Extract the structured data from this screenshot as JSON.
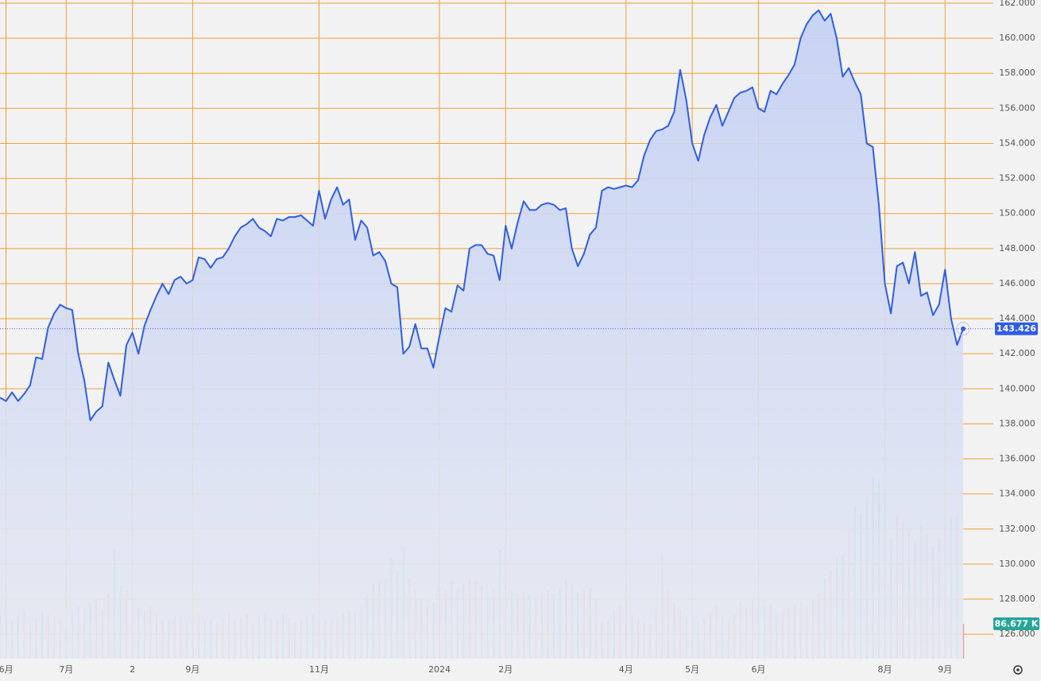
{
  "chart_data": {
    "type": "line",
    "series": [
      {
        "color": "#2f5de8",
        "values": [
          139.5,
          139.3,
          139.8,
          139.3,
          139.7,
          140.2,
          141.8,
          141.7,
          143.5,
          144.3,
          144.8,
          144.6,
          144.5,
          142.0,
          140.5,
          138.2,
          138.7,
          139.0,
          141.5,
          140.5,
          139.6,
          142.5,
          143.2,
          142.0,
          143.6,
          144.5,
          145.3,
          146.0,
          145.4,
          146.2,
          146.4,
          146.0,
          146.2,
          147.5,
          147.4,
          146.9,
          147.4,
          147.5,
          148.0,
          148.7,
          149.2,
          149.4,
          149.7,
          149.2,
          149.0,
          148.7,
          149.7,
          149.6,
          149.8,
          149.8,
          149.9,
          149.6,
          149.3,
          151.3,
          149.7,
          150.8,
          151.5,
          150.5,
          150.8,
          148.5,
          149.6,
          149.2,
          147.6,
          147.8,
          147.3,
          146.0,
          145.8,
          142.0,
          142.4,
          143.7,
          142.3,
          142.3,
          141.2,
          143.0,
          144.6,
          144.4,
          145.9,
          145.6,
          148.0,
          148.2,
          148.2,
          147.7,
          147.6,
          146.2,
          149.3,
          148.0,
          149.5,
          150.7,
          150.2,
          150.2,
          150.5,
          150.6,
          150.5,
          150.2,
          150.3,
          148.0,
          147.0,
          147.7,
          148.8,
          149.2,
          151.3,
          151.5,
          151.4,
          151.5,
          151.6,
          151.5,
          151.9,
          153.3,
          154.2,
          154.7,
          154.8,
          155.0,
          155.8,
          158.2,
          156.5,
          154.0,
          153.0,
          154.5,
          155.5,
          156.2,
          155.0,
          155.8,
          156.6,
          156.9,
          157.0,
          157.2,
          156.0,
          155.8,
          157.0,
          156.8,
          157.4,
          157.9,
          158.5,
          160.0,
          160.8,
          161.3,
          161.6,
          161.0,
          161.4,
          160.0,
          157.8,
          158.3,
          157.5,
          156.8,
          154.0,
          153.8,
          150.5,
          146.0,
          144.3,
          147.0,
          147.2,
          146.0,
          147.8,
          145.3,
          145.5,
          144.2,
          144.8,
          146.8,
          144.0,
          142.5,
          143.426
        ]
      }
    ],
    "volume": {
      "up_color": "#ef9a9a",
      "down_color": "#80c8bc",
      "ylim": [
        0,
        1625
      ],
      "last_label": "86.677 K",
      "values": [
        110,
        100,
        95,
        105,
        120,
        90,
        100,
        115,
        110,
        105,
        95,
        80,
        120,
        130,
        125,
        140,
        150,
        120,
        160,
        270,
        180,
        170,
        140,
        125,
        120,
        130,
        110,
        100,
        95,
        105,
        100,
        90,
        105,
        110,
        95,
        100,
        90,
        105,
        115,
        95,
        100,
        110,
        90,
        105,
        115,
        100,
        95,
        110,
        100,
        90,
        95,
        105,
        110,
        100,
        95,
        90,
        100,
        110,
        120,
        115,
        130,
        160,
        185,
        190,
        200,
        250,
        220,
        280,
        200,
        170,
        150,
        130,
        140,
        180,
        170,
        190,
        175,
        185,
        200,
        190,
        180,
        165,
        175,
        270,
        190,
        170,
        160,
        165,
        155,
        150,
        165,
        170,
        160,
        175,
        200,
        185,
        165,
        170,
        175,
        150,
        90,
        95,
        120,
        130,
        125,
        110,
        100,
        90,
        85,
        125,
        260,
        170,
        140,
        120,
        100,
        110,
        90,
        100,
        115,
        130,
        105,
        95,
        110,
        140,
        125,
        150,
        160,
        130,
        140,
        110,
        120,
        125,
        135,
        140,
        130,
        145,
        160,
        200,
        220,
        250,
        260,
        320,
        380,
        360,
        400,
        450,
        440,
        420,
        300,
        360,
        340,
        320,
        290,
        330,
        310,
        280,
        300,
        330,
        350,
        360,
        86.677
      ]
    },
    "ylim": [
      124.6,
      162
    ],
    "yticks": [
      {
        "value": 126,
        "label": "126.000"
      },
      {
        "value": 128,
        "label": "128.000"
      },
      {
        "value": 130,
        "label": "130.000"
      },
      {
        "value": 132,
        "label": "132.000"
      },
      {
        "value": 134,
        "label": "134.000"
      },
      {
        "value": 136,
        "label": "136.000"
      },
      {
        "value": 138,
        "label": "138.000"
      },
      {
        "value": 140,
        "label": "140.000"
      },
      {
        "value": 142,
        "label": "142.000"
      },
      {
        "value": 144,
        "label": "144.000"
      },
      {
        "value": 146,
        "label": "146.000"
      },
      {
        "value": 148,
        "label": "148.000"
      },
      {
        "value": 150,
        "label": "150.000"
      },
      {
        "value": 152,
        "label": "152.000"
      },
      {
        "value": 154,
        "label": "154.000"
      },
      {
        "value": 156,
        "label": "156.000"
      },
      {
        "value": 158,
        "label": "158.000"
      },
      {
        "value": 160,
        "label": "160.000"
      },
      {
        "value": 162,
        "label": "162.000"
      }
    ],
    "xticks": [
      {
        "value": 1,
        "label": "6月"
      },
      {
        "value": 11,
        "label": "7月"
      },
      {
        "value": 22,
        "label": "2"
      },
      {
        "value": 32,
        "label": "9月"
      },
      {
        "value": 53,
        "label": "11月"
      },
      {
        "value": 73,
        "label": "2024"
      },
      {
        "value": 84,
        "label": "2月"
      },
      {
        "value": 104,
        "label": "4月"
      },
      {
        "value": 115,
        "label": "5月"
      },
      {
        "value": 126,
        "label": "6月"
      },
      {
        "value": 147,
        "label": "8月"
      },
      {
        "value": 157,
        "label": "9月"
      }
    ],
    "grid": true,
    "grid_color": "#f0a030"
  }
}
